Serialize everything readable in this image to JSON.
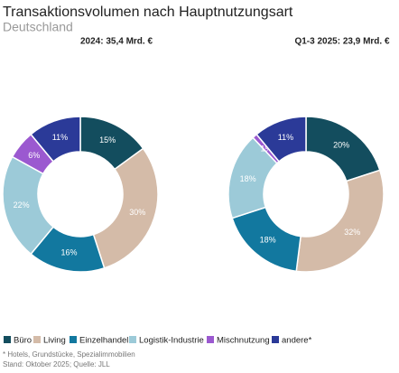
{
  "title": "Transaktionsvolumen nach Hauptnutzungsart",
  "subtitle": "Deutschland",
  "footnotes": [
    "* Hotels, Grundstücke, Spezialimmobilien",
    "Stand: Oktober 2025; Quelle: JLL"
  ],
  "chart_data": [
    {
      "type": "pie",
      "title": "2024: 35,4 Mrd. €",
      "categories": [
        "Büro",
        "Living",
        "Einzelhandel",
        "Logistik-Industrie",
        "Mischnutzung",
        "andere*"
      ],
      "values": [
        15,
        30,
        16,
        22,
        6,
        11
      ],
      "value_labels": [
        "15%",
        "30%",
        "16%",
        "22%",
        "6%",
        "11%"
      ],
      "colors": [
        "#134d5e",
        "#d4bba8",
        "#12789f",
        "#9ccad8",
        "#9b59d0",
        "#2b3a98"
      ]
    },
    {
      "type": "pie",
      "title": "Q1-3 2025: 23,9 Mrd. €",
      "categories": [
        "Büro",
        "Living",
        "Einzelhandel",
        "Logistik-Industrie",
        "Mischnutzung",
        "andere*"
      ],
      "values": [
        20,
        32,
        18,
        18,
        1,
        11
      ],
      "value_labels": [
        "20%",
        "32%",
        "18%",
        "18%",
        "1%",
        "11%"
      ],
      "colors": [
        "#134d5e",
        "#d4bba8",
        "#12789f",
        "#9ccad8",
        "#9b59d0",
        "#2b3a98"
      ]
    }
  ]
}
